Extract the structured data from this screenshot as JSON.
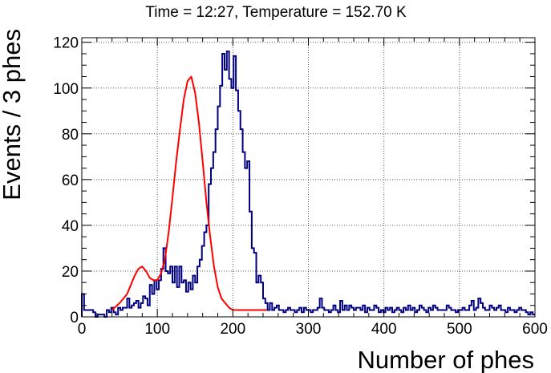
{
  "chart_data": {
    "type": "histogram",
    "title": "Time = 12:27, Temperature = 152.70 K",
    "xlabel": "Number of phes",
    "ylabel": "Events / 3 phes",
    "xlim": [
      0,
      600
    ],
    "ylim": [
      0,
      122
    ],
    "xticks": [
      0,
      100,
      200,
      300,
      400,
      500,
      600
    ],
    "yticks": [
      0,
      20,
      40,
      60,
      80,
      100,
      120
    ],
    "grid": true,
    "bin_width": 3,
    "series": [
      {
        "kind": "histogram",
        "color": "#000080",
        "bin_start": 0,
        "counts": [
          10,
          3,
          3,
          3,
          3,
          2,
          0,
          1,
          1,
          1,
          0,
          3,
          2,
          4,
          2,
          1,
          4,
          3,
          4,
          4,
          8,
          4,
          5,
          6,
          7,
          4,
          6,
          9,
          8,
          5,
          14,
          10,
          16,
          12,
          16,
          21,
          30,
          20,
          19,
          22,
          15,
          22,
          13,
          22,
          15,
          16,
          11,
          15,
          12,
          18,
          15,
          22,
          25,
          31,
          37,
          40,
          58,
          65,
          72,
          82,
          92,
          101,
          115,
          108,
          116,
          104,
          100,
          114,
          99,
          90,
          82,
          72,
          65,
          68,
          46,
          30,
          28,
          15,
          18,
          15,
          8,
          6,
          3,
          6,
          3,
          4,
          5,
          3,
          3,
          2,
          3,
          4,
          3,
          3,
          2,
          3,
          4,
          2,
          4,
          3,
          3,
          2,
          3,
          3,
          4,
          8,
          4,
          3,
          3,
          2,
          3,
          5,
          3,
          2,
          7,
          3,
          5,
          3,
          5,
          4,
          3,
          4,
          4,
          3,
          5,
          2,
          4,
          3,
          3,
          5,
          4,
          2,
          3,
          2,
          4,
          3,
          4,
          2,
          3,
          4,
          3,
          2,
          4,
          3,
          5,
          3,
          4,
          2,
          3,
          5,
          4,
          3,
          2,
          4,
          3,
          5,
          4,
          3,
          3,
          3,
          3,
          5,
          4,
          3,
          3,
          2,
          3,
          3,
          4,
          3,
          3,
          5,
          7,
          3,
          4,
          8,
          6,
          4,
          3,
          3,
          5,
          4,
          3,
          4,
          5,
          3,
          3,
          2,
          4,
          3,
          3,
          2,
          3,
          4,
          3,
          3,
          2,
          1,
          2,
          1
        ]
      },
      {
        "kind": "fit",
        "color": "#ff0000",
        "x": [
          40,
          50,
          60,
          65,
          70,
          75,
          80,
          85,
          90,
          95,
          100,
          105,
          110,
          115,
          120,
          125,
          130,
          135,
          140,
          145,
          150,
          155,
          160,
          165,
          170,
          175,
          180,
          185,
          190,
          195,
          200,
          210,
          220,
          230,
          245
        ],
        "y": [
          3,
          6,
          10,
          14,
          18,
          21,
          22,
          20,
          17,
          16,
          16,
          19,
          25,
          37,
          52,
          68,
          82,
          95,
          103,
          105,
          98,
          85,
          68,
          50,
          35,
          22,
          13,
          8,
          6,
          4,
          3,
          3,
          3,
          3,
          3
        ]
      }
    ]
  }
}
